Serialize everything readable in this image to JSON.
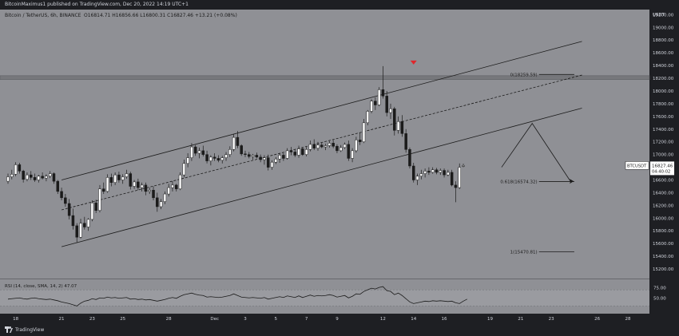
{
  "header": {
    "published": "BitcoinMaximus1 published on TradingView.com, Dec 20, 2022 14:19 UTC+1"
  },
  "legend": {
    "symbol": "Bitcoin / TetherUS, 6h, BINANCE",
    "ohlc": "O16814.71  H16856.66  L16800.31  C16827.46  +13.21 (+0.08%)"
  },
  "footer": {
    "brand": "TradingView"
  },
  "colors": {
    "background": "#8f9095",
    "up": "#ffffff",
    "down": "#1b1b1b",
    "panel": "#1e1f23",
    "marker": "#e0262b"
  },
  "chart_data": {
    "type": "candlestick",
    "symbol": "BTCUSDT",
    "currency": "USDT",
    "timeframe": "6h",
    "exchange": "BINANCE",
    "y_ticks": [
      "19200.00",
      "19000.00",
      "18800.00",
      "18600.00",
      "18400.00",
      "18200.00",
      "18000.00",
      "17800.00",
      "17600.00",
      "17400.00",
      "17200.00",
      "17000.00",
      "16800.00",
      "16600.00",
      "16400.00",
      "16200.00",
      "16000.00",
      "15800.00",
      "15600.00",
      "15400.00",
      "15200.00"
    ],
    "ylim": [
      15050,
      19280
    ],
    "x_ticks": [
      {
        "i": 2,
        "label": "18"
      },
      {
        "i": 14,
        "label": "21"
      },
      {
        "i": 22,
        "label": "23"
      },
      {
        "i": 30,
        "label": "25"
      },
      {
        "i": 42,
        "label": "28"
      },
      {
        "i": 54,
        "label": "Dec"
      },
      {
        "i": 62,
        "label": "3"
      },
      {
        "i": 70,
        "label": "5"
      },
      {
        "i": 78,
        "label": "7"
      },
      {
        "i": 86,
        "label": "9"
      },
      {
        "i": 98,
        "label": "12"
      },
      {
        "i": 106,
        "label": "14"
      },
      {
        "i": 114,
        "label": "16"
      },
      {
        "i": 126,
        "label": "19"
      },
      {
        "i": 134,
        "label": "21"
      },
      {
        "i": 142,
        "label": "23"
      },
      {
        "i": 154,
        "label": "26"
      },
      {
        "i": 162,
        "label": "28"
      }
    ],
    "candles": [
      [
        16580,
        16700,
        16540,
        16650
      ],
      [
        16650,
        16760,
        16610,
        16690
      ],
      [
        16690,
        16880,
        16660,
        16840
      ],
      [
        16840,
        16870,
        16700,
        16740
      ],
      [
        16740,
        16760,
        16560,
        16610
      ],
      [
        16610,
        16720,
        16580,
        16680
      ],
      [
        16680,
        16740,
        16600,
        16640
      ],
      [
        16640,
        16700,
        16570,
        16600
      ],
      [
        16600,
        16680,
        16560,
        16660
      ],
      [
        16660,
        16720,
        16610,
        16630
      ],
      [
        16630,
        16690,
        16580,
        16660
      ],
      [
        16660,
        16740,
        16630,
        16700
      ],
      [
        16700,
        16720,
        16540,
        16580
      ],
      [
        16580,
        16600,
        16380,
        16420
      ],
      [
        16420,
        16480,
        16280,
        16320
      ],
      [
        16320,
        16380,
        16180,
        16230
      ],
      [
        16230,
        16300,
        15980,
        16040
      ],
      [
        16040,
        16150,
        15820,
        15880
      ],
      [
        15880,
        15920,
        15620,
        15700
      ],
      [
        15700,
        15990,
        15680,
        15920
      ],
      [
        15920,
        16020,
        15820,
        15860
      ],
      [
        15860,
        16000,
        15800,
        15980
      ],
      [
        15980,
        16280,
        15950,
        16240
      ],
      [
        16240,
        16290,
        16080,
        16120
      ],
      [
        16120,
        16520,
        16090,
        16460
      ],
      [
        16460,
        16560,
        16380,
        16420
      ],
      [
        16420,
        16690,
        16400,
        16640
      ],
      [
        16640,
        16700,
        16500,
        16560
      ],
      [
        16560,
        16720,
        16520,
        16680
      ],
      [
        16680,
        16730,
        16560,
        16600
      ],
      [
        16600,
        16690,
        16540,
        16650
      ],
      [
        16650,
        16760,
        16620,
        16700
      ],
      [
        16700,
        16730,
        16450,
        16500
      ],
      [
        16500,
        16600,
        16460,
        16570
      ],
      [
        16570,
        16620,
        16440,
        16480
      ],
      [
        16480,
        16560,
        16420,
        16520
      ],
      [
        16520,
        16560,
        16360,
        16420
      ],
      [
        16420,
        16480,
        16380,
        16440
      ],
      [
        16440,
        16500,
        16280,
        16320
      ],
      [
        16320,
        16400,
        16100,
        16180
      ],
      [
        16180,
        16300,
        16140,
        16260
      ],
      [
        16260,
        16420,
        16220,
        16380
      ],
      [
        16380,
        16540,
        16340,
        16480
      ],
      [
        16480,
        16580,
        16420,
        16520
      ],
      [
        16520,
        16540,
        16420,
        16460
      ],
      [
        16460,
        16720,
        16440,
        16680
      ],
      [
        16680,
        16920,
        16640,
        16860
      ],
      [
        16860,
        17020,
        16800,
        16950
      ],
      [
        16950,
        17180,
        16900,
        17120
      ],
      [
        17120,
        17150,
        16980,
        17020
      ],
      [
        17020,
        17110,
        16940,
        17060
      ],
      [
        17060,
        17140,
        16970,
        17000
      ],
      [
        17000,
        17060,
        16860,
        16900
      ],
      [
        16900,
        16990,
        16830,
        16960
      ],
      [
        16960,
        17020,
        16900,
        16940
      ],
      [
        16940,
        16990,
        16880,
        16910
      ],
      [
        16910,
        16980,
        16860,
        16950
      ],
      [
        16950,
        17040,
        16900,
        17000
      ],
      [
        17000,
        17130,
        16960,
        17080
      ],
      [
        17080,
        17320,
        17050,
        17270
      ],
      [
        17270,
        17370,
        17100,
        17140
      ],
      [
        17140,
        17160,
        16980,
        17010
      ],
      [
        17010,
        17060,
        16960,
        17000
      ],
      [
        17000,
        17040,
        16940,
        16970
      ],
      [
        16970,
        17010,
        16920,
        16990
      ],
      [
        16990,
        17030,
        16940,
        16960
      ],
      [
        16960,
        17000,
        16880,
        16920
      ],
      [
        16920,
        16990,
        16840,
        16950
      ],
      [
        16950,
        17000,
        16750,
        16800
      ],
      [
        16800,
        16910,
        16760,
        16880
      ],
      [
        16880,
        16960,
        16850,
        16930
      ],
      [
        16930,
        17020,
        16870,
        16990
      ],
      [
        16990,
        17020,
        16900,
        16940
      ],
      [
        16940,
        17100,
        16920,
        17060
      ],
      [
        17060,
        17120,
        16990,
        17040
      ],
      [
        17040,
        17080,
        16960,
        16990
      ],
      [
        16990,
        17140,
        16950,
        17090
      ],
      [
        17090,
        17110,
        16980,
        17000
      ],
      [
        17000,
        17120,
        16970,
        17080
      ],
      [
        17080,
        17220,
        17050,
        17160
      ],
      [
        17160,
        17240,
        17070,
        17100
      ],
      [
        17100,
        17200,
        17060,
        17150
      ],
      [
        17150,
        17190,
        17100,
        17120
      ],
      [
        17120,
        17170,
        17070,
        17140
      ],
      [
        17140,
        17210,
        17110,
        17180
      ],
      [
        17180,
        17230,
        17100,
        17130
      ],
      [
        17130,
        17160,
        17020,
        17060
      ],
      [
        17060,
        17150,
        17040,
        17110
      ],
      [
        17110,
        17190,
        17090,
        17160
      ],
      [
        17160,
        17220,
        16900,
        16940
      ],
      [
        16940,
        17100,
        16880,
        17060
      ],
      [
        17060,
        17280,
        17030,
        17230
      ],
      [
        17230,
        17340,
        17150,
        17200
      ],
      [
        17200,
        17560,
        17180,
        17500
      ],
      [
        17500,
        17700,
        17460,
        17680
      ],
      [
        17680,
        17870,
        17650,
        17840
      ],
      [
        17840,
        17900,
        17700,
        17780
      ],
      [
        17780,
        18060,
        17760,
        18020
      ],
      [
        18020,
        18390,
        17880,
        17920
      ],
      [
        17920,
        18000,
        17600,
        17660
      ],
      [
        17660,
        17800,
        17560,
        17720
      ],
      [
        17720,
        17750,
        17300,
        17380
      ],
      [
        17380,
        17600,
        17330,
        17520
      ],
      [
        17520,
        17620,
        17280,
        17330
      ],
      [
        17330,
        17400,
        17030,
        17080
      ],
      [
        17080,
        17110,
        16780,
        16820
      ],
      [
        16820,
        16870,
        16560,
        16600
      ],
      [
        16600,
        16700,
        16520,
        16660
      ],
      [
        16660,
        16760,
        16610,
        16700
      ],
      [
        16700,
        16780,
        16640,
        16740
      ],
      [
        16740,
        16800,
        16680,
        16720
      ],
      [
        16720,
        16800,
        16700,
        16760
      ],
      [
        16760,
        16790,
        16690,
        16720
      ],
      [
        16720,
        16780,
        16680,
        16750
      ],
      [
        16750,
        16780,
        16640,
        16680
      ],
      [
        16680,
        16760,
        16660,
        16720
      ],
      [
        16720,
        16760,
        16500,
        16520
      ],
      [
        16520,
        16580,
        16250,
        16480
      ],
      [
        16480,
        16860,
        16460,
        16800
      ],
      [
        16814.71,
        16856.66,
        16800.31,
        16827.46
      ]
    ],
    "horizontal_band": {
      "from": 18180,
      "to": 18240
    },
    "channel": {
      "upper": [
        [
          14,
          16600
        ],
        [
          150,
          18780
        ]
      ],
      "middle": [
        [
          14,
          16130
        ],
        [
          150,
          18250
        ]
      ],
      "lower": [
        [
          14,
          15550
        ],
        [
          150,
          17730
        ]
      ]
    },
    "fibonacci": [
      {
        "label": "0(18259.59)",
        "value": 18259.59,
        "from": 130,
        "to": 148
      },
      {
        "label": "0.618(16574.32)",
        "value": 16574.32,
        "from": 130,
        "to": 148
      },
      {
        "label": "1(15470.81)",
        "value": 15470.81,
        "from": 130,
        "to": 148
      }
    ],
    "projection": [
      [
        129,
        16800
      ],
      [
        137,
        17490
      ],
      [
        147,
        16580
      ]
    ],
    "marker": {
      "i": 106,
      "value": 18440
    },
    "price_label": {
      "symbol": "BTCUSDT",
      "value": "16827.46",
      "countdown": "04:40:02"
    },
    "rsi": {
      "label": "RSI (14, close, SMA, 14, 2)  47.07",
      "ticks": [
        "75.00",
        "50.00"
      ],
      "ylim": [
        15,
        92
      ],
      "band": [
        30,
        70
      ],
      "values": [
        47,
        48,
        49,
        50,
        48,
        47,
        49,
        50,
        48,
        47,
        46,
        47,
        45,
        43,
        40,
        38,
        36,
        33,
        30,
        37,
        42,
        44,
        48,
        46,
        50,
        49,
        52,
        50,
        51,
        49,
        50,
        51,
        47,
        48,
        46,
        47,
        45,
        46,
        44,
        42,
        44,
        46,
        49,
        51,
        49,
        54,
        58,
        60,
        62,
        59,
        57,
        56,
        52,
        53,
        52,
        51,
        52,
        54,
        56,
        60,
        56,
        52,
        51,
        50,
        51,
        50,
        49,
        51,
        47,
        49,
        51,
        53,
        51,
        55,
        53,
        51,
        55,
        51,
        54,
        57,
        54,
        56,
        55,
        56,
        58,
        56,
        52,
        54,
        56,
        50,
        54,
        60,
        59,
        66,
        70,
        74,
        72,
        76,
        78,
        68,
        66,
        58,
        62,
        56,
        48,
        40,
        36,
        38,
        40,
        42,
        41,
        43,
        42,
        43,
        42,
        41,
        42,
        38,
        36,
        42,
        47
      ]
    }
  }
}
